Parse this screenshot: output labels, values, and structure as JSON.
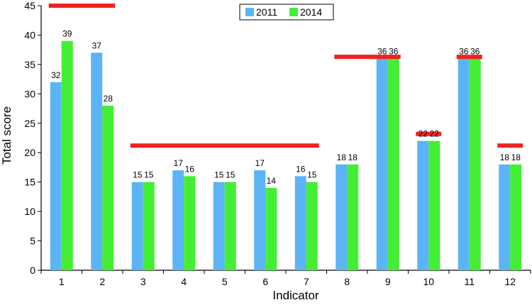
{
  "chart_data": {
    "type": "bar",
    "title": "",
    "xlabel": "Indicator",
    "ylabel": "Total score",
    "ylim": [
      0,
      45
    ],
    "yticks": [
      0,
      5,
      10,
      15,
      20,
      25,
      30,
      35,
      40,
      45
    ],
    "categories": [
      "1",
      "2",
      "3",
      "4",
      "5",
      "6",
      "7",
      "8",
      "9",
      "10",
      "11",
      "12"
    ],
    "series": [
      {
        "name": "2011",
        "color": "#5bb4f5",
        "values": [
          32,
          37,
          15,
          17,
          15,
          17,
          16,
          18,
          36,
          22,
          36,
          18
        ]
      },
      {
        "name": "2014",
        "color": "#44ee33",
        "values": [
          39,
          28,
          15,
          16,
          15,
          14,
          15,
          18,
          36,
          22,
          36,
          18
        ]
      }
    ],
    "data_labels": {
      "2011": [
        "32",
        "37",
        "15",
        "17",
        "15",
        "17",
        "16",
        "18",
        "36",
        "22",
        "36",
        "18"
      ],
      "2014": [
        "39",
        "28",
        "15",
        "16",
        "15",
        "14",
        "15",
        "18",
        "36",
        "22",
        "36",
        "18"
      ]
    },
    "reference_lines": [
      {
        "from_category": "1",
        "to_category": "2",
        "y": 45,
        "color": "#ee2222"
      },
      {
        "from_category": "3",
        "to_category": "7",
        "y": 21.2,
        "color": "#ee2222"
      },
      {
        "from_category": "8",
        "to_category": "9",
        "y": 36.3,
        "color": "#ee2222"
      },
      {
        "from_category": "10",
        "to_category": "10",
        "y": 23.2,
        "color": "#ee2222"
      },
      {
        "from_category": "11",
        "to_category": "11",
        "y": 36.3,
        "color": "#ee2222"
      },
      {
        "from_category": "12",
        "to_category": "12",
        "y": 21.2,
        "color": "#ee2222"
      }
    ],
    "legend": {
      "position": "top-center",
      "entries": [
        "2011",
        "2014"
      ]
    },
    "grid": false
  }
}
